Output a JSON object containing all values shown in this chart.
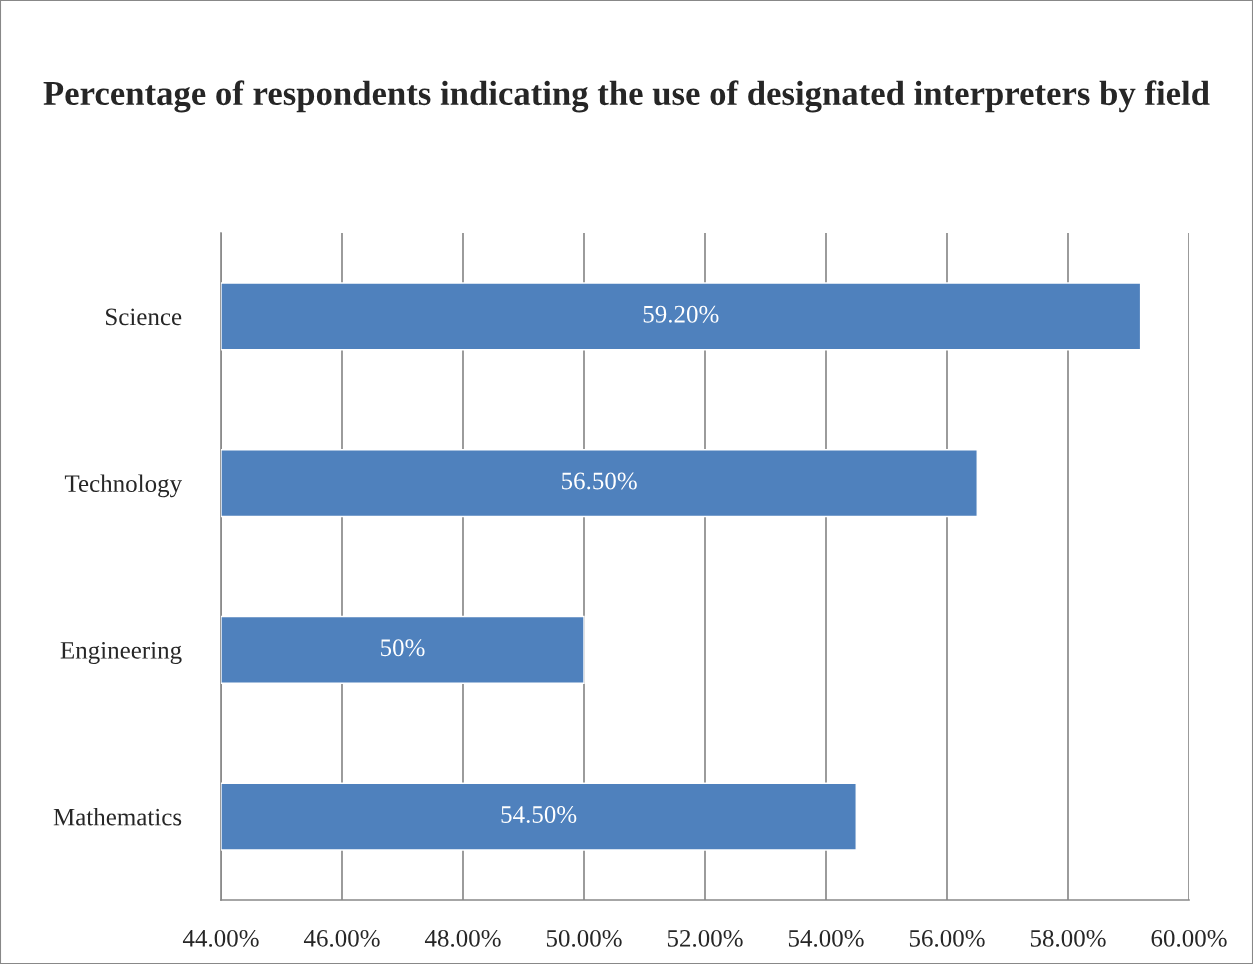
{
  "chart_data": {
    "type": "bar",
    "orientation": "horizontal",
    "title": "Percentage of respondents indicating the use of designated interpreters by field",
    "categories": [
      "Science",
      "Technology",
      "Engineering",
      "Mathematics"
    ],
    "values": [
      59.2,
      56.5,
      50,
      54.5
    ],
    "value_labels": [
      "59.20%",
      "56.50%",
      "50%",
      "54.50%"
    ],
    "color": "#4f81bd",
    "xlim": [
      44,
      60
    ],
    "xticks": [
      {
        "value": 44,
        "label": "44.00%"
      },
      {
        "value": 46,
        "label": "46.00%"
      },
      {
        "value": 48,
        "label": "48.00%"
      },
      {
        "value": 50,
        "label": "50.00%"
      },
      {
        "value": 52,
        "label": "52.00%"
      },
      {
        "value": 54,
        "label": "54.00%"
      },
      {
        "value": 56,
        "label": "56.00%"
      },
      {
        "value": 58,
        "label": "58.00%"
      },
      {
        "value": 60,
        "label": "60.00%"
      }
    ],
    "grid": "x"
  }
}
